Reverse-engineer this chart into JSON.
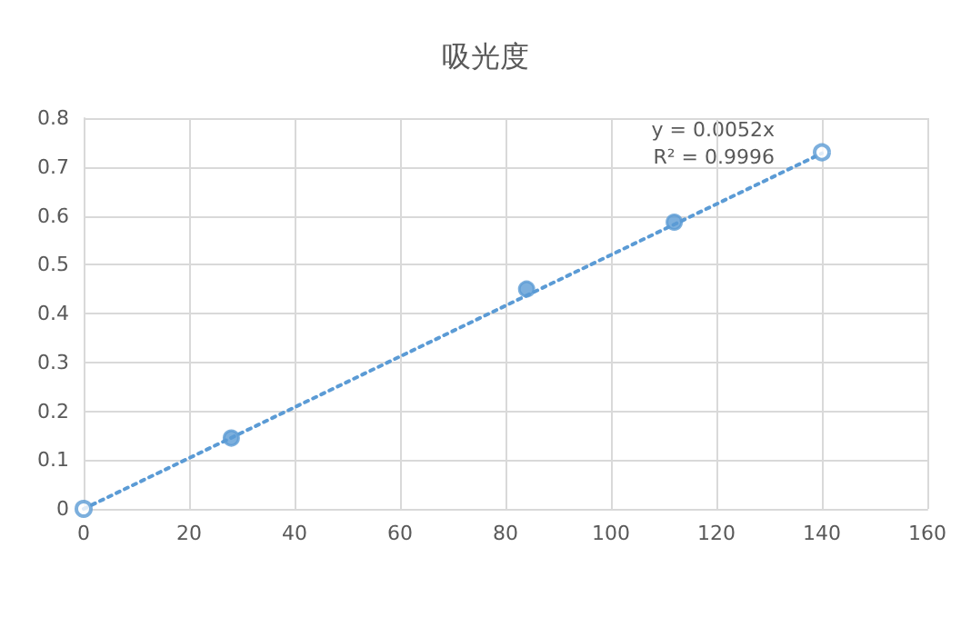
{
  "chart_data": {
    "type": "scatter",
    "title": "吸光度",
    "series": [
      {
        "color": "#5b9bd5",
        "x": [
          28,
          84,
          112
        ],
        "values": [
          0.145,
          0.45,
          0.587
        ]
      },
      {
        "color": "#5b9bd5",
        "x": [
          0,
          140
        ],
        "values": [
          0,
          0.73
        ]
      },
      {
        "type": "line",
        "color": "#5b9bd5",
        "x": [
          0,
          140
        ],
        "values": [
          0,
          0.728
        ],
        "line_style": "dotted",
        "marker": "none"
      }
    ],
    "annotations": [
      "y = 0.0052x",
      "R² = 0.9996"
    ],
    "xlim": [
      0,
      160
    ],
    "xticks": [
      0,
      20,
      40,
      60,
      80,
      100,
      120,
      140,
      160
    ],
    "ylim": [
      0,
      0.8
    ],
    "yticks": [
      0,
      0.1,
      0.2,
      0.3,
      0.4,
      0.5,
      0.6,
      0.7,
      0.8
    ],
    "grid": true,
    "marker": "circle"
  }
}
